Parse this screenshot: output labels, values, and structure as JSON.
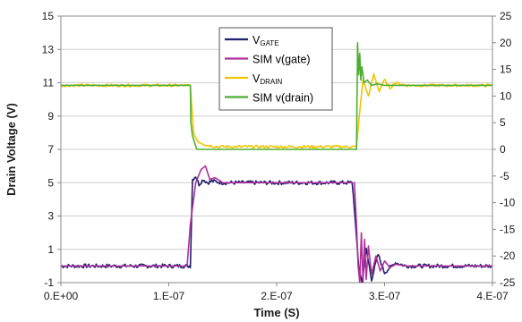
{
  "chart_data": {
    "type": "line",
    "xlabel": "Time (S)",
    "ylabel": "Drain Voltage (V)",
    "x_ticks": [
      "0.E+00",
      "1.E-07",
      "2.E-07",
      "3.E-07",
      "4.E-07"
    ],
    "x_tick_values": [
      0,
      1e-07,
      2e-07,
      3e-07,
      4e-07
    ],
    "xlim": [
      0,
      4e-07
    ],
    "ylim_left": [
      -1,
      15
    ],
    "y_ticks_left": [
      "-1",
      "1",
      "3",
      "5",
      "7",
      "9",
      "11",
      "13",
      "15"
    ],
    "y_tick_values_left": [
      -1,
      1,
      3,
      5,
      7,
      9,
      11,
      13,
      15
    ],
    "ylim_right": [
      -25,
      25
    ],
    "y_ticks_right": [
      "-25",
      "-20",
      "-15",
      "-10",
      "-5",
      "0",
      "5",
      "10",
      "15",
      "20",
      "25"
    ],
    "y_tick_values_right": [
      -25,
      -20,
      -15,
      -10,
      -5,
      0,
      5,
      10,
      15,
      20,
      25
    ],
    "grid": true,
    "legend_position": "top-center",
    "legend": [
      {
        "main": "V",
        "sub": "GATE"
      },
      {
        "main": "SIM v(gate)",
        "sub": ""
      },
      {
        "main": "V",
        "sub": "DRAIN"
      },
      {
        "main": "SIM v(drain)",
        "sub": ""
      }
    ],
    "series": [
      {
        "name": "V_GATE",
        "color": "#1f1f6e",
        "axis": "left",
        "noise": 0.12,
        "x": [
          0,
          1.2e-07,
          1.22e-07,
          1.25e-07,
          1.28e-07,
          1.32e-07,
          1.36e-07,
          1.4e-07,
          1.5e-07,
          2.7e-07,
          2.72e-07,
          2.74e-07,
          2.76e-07,
          2.79e-07,
          2.83e-07,
          2.88e-07,
          2.94e-07,
          3e-07,
          3.1e-07,
          3.2e-07,
          4e-07
        ],
        "y": [
          0,
          0,
          5.2,
          5.4,
          4.9,
          5.2,
          5.0,
          5.1,
          5.0,
          5.0,
          3.5,
          1.6,
          0.0,
          -1.0,
          1.0,
          -0.8,
          0.7,
          -0.4,
          0.2,
          0.0,
          0.0
        ]
      },
      {
        "name": "SIM v(gate)",
        "color": "#b0309a",
        "axis": "left",
        "noise": 0,
        "x": [
          0,
          1.17e-07,
          1.2e-07,
          1.25e-07,
          1.3e-07,
          1.34e-07,
          1.38e-07,
          1.43e-07,
          1.5e-07,
          1.6e-07,
          2.72e-07,
          2.74e-07,
          2.755e-07,
          2.77e-07,
          2.785e-07,
          2.8e-07,
          2.815e-07,
          2.83e-07,
          2.85e-07,
          2.88e-07,
          2.92e-07,
          2.96e-07,
          3e-07,
          3.05e-07,
          3.1e-07,
          3.2e-07,
          4e-07
        ],
        "y": [
          0,
          0,
          2.5,
          5.0,
          5.8,
          6.0,
          5.2,
          5.3,
          5.0,
          5.0,
          5.0,
          2.5,
          0.0,
          -1.0,
          2.0,
          -1.0,
          1.6,
          -0.8,
          1.2,
          -0.5,
          0.6,
          -0.3,
          0.3,
          -0.1,
          0.1,
          0.0,
          0.0
        ]
      },
      {
        "name": "V_DRAIN",
        "color": "#f2c400",
        "axis": "right",
        "noise": 0.25,
        "x": [
          0,
          1.2e-07,
          1.23e-07,
          1.27e-07,
          1.35e-07,
          1.45e-07,
          2.74e-07,
          2.76e-07,
          2.8e-07,
          2.85e-07,
          2.9e-07,
          2.95e-07,
          3e-07,
          3.05e-07,
          3.1e-07,
          3.2e-07,
          4e-07
        ],
        "y": [
          12,
          12,
          3.0,
          1.5,
          0.8,
          0.5,
          0.5,
          5.0,
          13.0,
          10.0,
          14.0,
          11.0,
          13.0,
          11.5,
          12.5,
          12.0,
          12.0
        ]
      },
      {
        "name": "SIM v(drain)",
        "color": "#4caf32",
        "axis": "right",
        "noise": 0,
        "x": [
          0,
          1.2e-07,
          1.205e-07,
          1.22e-07,
          1.26e-07,
          2.74e-07,
          2.75e-07,
          2.76e-07,
          2.77e-07,
          2.78e-07,
          2.79e-07,
          2.81e-07,
          2.84e-07,
          2.88e-07,
          2.93e-07,
          3e-07,
          3.1e-07,
          4e-07
        ],
        "y": [
          12,
          12,
          5.0,
          2.5,
          0.0,
          0.0,
          20.0,
          14.0,
          18.0,
          13.0,
          15.5,
          12.5,
          13.0,
          12.0,
          12.3,
          12.0,
          12.0,
          12.0
        ]
      }
    ]
  }
}
